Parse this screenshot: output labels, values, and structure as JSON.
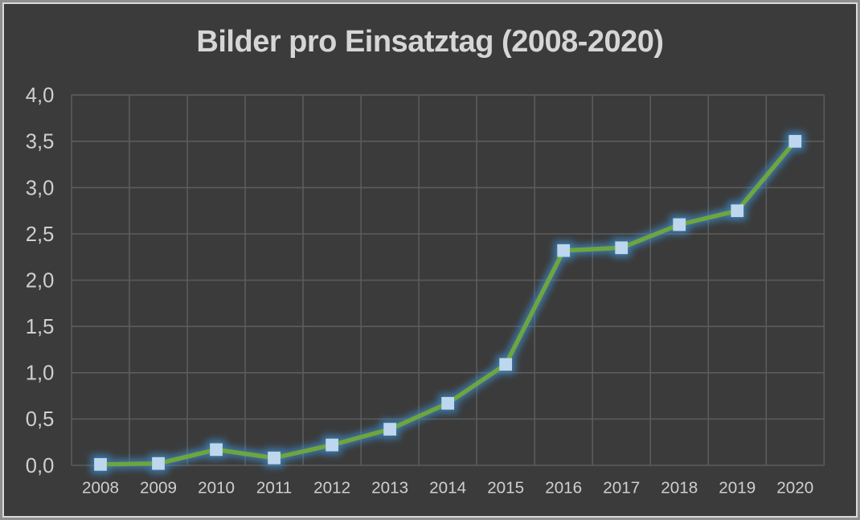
{
  "chart_data": {
    "type": "line",
    "title": "Bilder pro Einsatztag (2008-2020)",
    "categories": [
      "2008",
      "2009",
      "2010",
      "2011",
      "2012",
      "2013",
      "2014",
      "2015",
      "2016",
      "2017",
      "2018",
      "2019",
      "2020"
    ],
    "values": [
      0.01,
      0.02,
      0.17,
      0.08,
      0.22,
      0.39,
      0.67,
      1.09,
      2.32,
      2.35,
      2.6,
      2.75,
      3.5
    ],
    "xlabel": "",
    "ylabel": "",
    "ylim": [
      0,
      4
    ],
    "ytick_step": 0.5,
    "ytick_labels": [
      "0,0",
      "0,5",
      "1,0",
      "1,5",
      "2,0",
      "2,5",
      "3,0",
      "3,5",
      "4,0"
    ],
    "grid": true,
    "legend": "none",
    "marker": "square",
    "colors": {
      "background": "#3b3b3b",
      "outer_border": "#8f8f8f",
      "inner_border": "#d9d9d9",
      "gridline": "#5c5c5c",
      "title_text": "#d6d6d6",
      "tick_text": "#cfcfcf",
      "line": "#6fa53e",
      "marker_fill": "#bdd7ee",
      "marker_glow": "#3e8fd0"
    }
  }
}
